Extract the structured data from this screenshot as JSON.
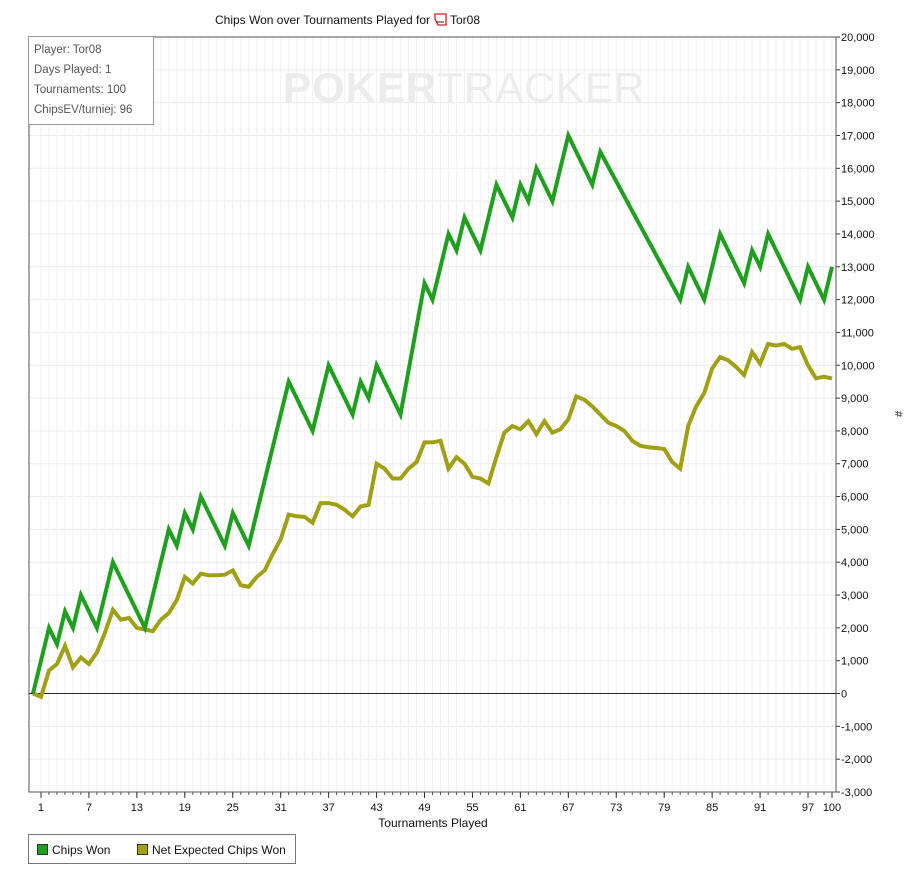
{
  "watermark": {
    "bold": "POKER",
    "thin": "TRACKER"
  },
  "info_box": {
    "lines": [
      "Player: Tor08",
      "Days Played: 1",
      "Tournaments: 100",
      "ChipsEV/turniej: 96"
    ]
  },
  "colors": {
    "chips_won": "#1ea01e",
    "net_expected": "#a0a014"
  },
  "chart_data": {
    "type": "line",
    "title": "Chips Won over Tournaments Played for",
    "title_player": "Tor08",
    "xlabel": "Tournaments Played",
    "ylabel": "#",
    "xlim": [
      0,
      100
    ],
    "ylim": [
      -3000,
      20000
    ],
    "x_ticks": [
      1,
      7,
      13,
      19,
      25,
      31,
      37,
      43,
      49,
      55,
      61,
      67,
      73,
      79,
      85,
      91,
      97,
      100
    ],
    "y_ticks": [
      "20,000",
      "19,000",
      "18,000",
      "17,000",
      "16,000",
      "15,000",
      "14,000",
      "13,000",
      "12,000",
      "11,000",
      "10,000",
      "9,000",
      "8,000",
      "7,000",
      "6,000",
      "5,000",
      "4,000",
      "3,000",
      "2,000",
      "1,000",
      "0",
      "-1,000",
      "-2,000",
      "-3,000"
    ],
    "legend": [
      "Chips Won",
      "Net Expected Chips Won"
    ],
    "legend_position": "bottom-left",
    "grid": true,
    "series": [
      {
        "name": "Chips Won",
        "points": [
          [
            0,
            0
          ],
          [
            2,
            2000
          ],
          [
            3,
            1500
          ],
          [
            4,
            2500
          ],
          [
            5,
            2000
          ],
          [
            6,
            3000
          ],
          [
            8,
            2000
          ],
          [
            10,
            4000
          ],
          [
            14,
            2000
          ],
          [
            17,
            5000
          ],
          [
            18,
            4500
          ],
          [
            19,
            5500
          ],
          [
            20,
            5000
          ],
          [
            21,
            6000
          ],
          [
            24,
            4500
          ],
          [
            25,
            5500
          ],
          [
            27,
            4500
          ],
          [
            32,
            9500
          ],
          [
            35,
            8000
          ],
          [
            37,
            10000
          ],
          [
            40,
            8500
          ],
          [
            41,
            9500
          ],
          [
            42,
            9000
          ],
          [
            43,
            10000
          ],
          [
            46,
            8500
          ],
          [
            49,
            12500
          ],
          [
            50,
            12000
          ],
          [
            52,
            14000
          ],
          [
            53,
            13500
          ],
          [
            54,
            14500
          ],
          [
            56,
            13500
          ],
          [
            58,
            15500
          ],
          [
            60,
            14500
          ],
          [
            61,
            15500
          ],
          [
            62,
            15000
          ],
          [
            63,
            16000
          ],
          [
            65,
            15000
          ],
          [
            67,
            17000
          ],
          [
            70,
            15500
          ],
          [
            71,
            16500
          ],
          [
            81,
            12000
          ],
          [
            82,
            13000
          ],
          [
            84,
            12000
          ],
          [
            86,
            14000
          ],
          [
            89,
            12500
          ],
          [
            90,
            13500
          ],
          [
            91,
            13000
          ],
          [
            92,
            14000
          ],
          [
            96,
            12000
          ],
          [
            97,
            13000
          ],
          [
            99,
            12000
          ],
          [
            100,
            13000
          ]
        ]
      },
      {
        "name": "Net Expected Chips Won",
        "points": [
          [
            0,
            0
          ],
          [
            1,
            -100
          ],
          [
            2,
            700
          ],
          [
            3,
            900
          ],
          [
            4,
            1450
          ],
          [
            5,
            800
          ],
          [
            6,
            1100
          ],
          [
            7,
            900
          ],
          [
            8,
            1250
          ],
          [
            9,
            1850
          ],
          [
            10,
            2550
          ],
          [
            11,
            2250
          ],
          [
            12,
            2300
          ],
          [
            13,
            2000
          ],
          [
            14,
            1950
          ],
          [
            15,
            1900
          ],
          [
            16,
            2250
          ],
          [
            17,
            2450
          ],
          [
            18,
            2850
          ],
          [
            19,
            3550
          ],
          [
            20,
            3350
          ],
          [
            21,
            3650
          ],
          [
            22,
            3600
          ],
          [
            23,
            3600
          ],
          [
            24,
            3620
          ],
          [
            25,
            3750
          ],
          [
            26,
            3300
          ],
          [
            27,
            3250
          ],
          [
            28,
            3550
          ],
          [
            29,
            3750
          ],
          [
            30,
            4250
          ],
          [
            31,
            4700
          ],
          [
            32,
            5450
          ],
          [
            33,
            5400
          ],
          [
            34,
            5380
          ],
          [
            35,
            5200
          ],
          [
            36,
            5800
          ],
          [
            37,
            5800
          ],
          [
            38,
            5750
          ],
          [
            39,
            5600
          ],
          [
            40,
            5400
          ],
          [
            41,
            5700
          ],
          [
            42,
            5750
          ],
          [
            43,
            7000
          ],
          [
            44,
            6850
          ],
          [
            45,
            6550
          ],
          [
            46,
            6550
          ],
          [
            47,
            6850
          ],
          [
            48,
            7050
          ],
          [
            49,
            7650
          ],
          [
            50,
            7650
          ],
          [
            51,
            7700
          ],
          [
            52,
            6850
          ],
          [
            53,
            7200
          ],
          [
            54,
            7000
          ],
          [
            55,
            6600
          ],
          [
            56,
            6550
          ],
          [
            57,
            6400
          ],
          [
            58,
            7200
          ],
          [
            59,
            7950
          ],
          [
            60,
            8150
          ],
          [
            61,
            8050
          ],
          [
            62,
            8300
          ],
          [
            63,
            7900
          ],
          [
            64,
            8300
          ],
          [
            65,
            7950
          ],
          [
            66,
            8050
          ],
          [
            67,
            8350
          ],
          [
            68,
            9050
          ],
          [
            69,
            8950
          ],
          [
            70,
            8750
          ],
          [
            71,
            8500
          ],
          [
            72,
            8250
          ],
          [
            73,
            8150
          ],
          [
            74,
            8000
          ],
          [
            75,
            7700
          ],
          [
            76,
            7550
          ],
          [
            77,
            7500
          ],
          [
            78,
            7480
          ],
          [
            79,
            7450
          ],
          [
            80,
            7050
          ],
          [
            81,
            6850
          ],
          [
            82,
            8150
          ],
          [
            83,
            8750
          ],
          [
            84,
            9150
          ],
          [
            85,
            9900
          ],
          [
            86,
            10250
          ],
          [
            87,
            10150
          ],
          [
            88,
            9950
          ],
          [
            89,
            9700
          ],
          [
            90,
            10400
          ],
          [
            91,
            10050
          ],
          [
            92,
            10650
          ],
          [
            93,
            10600
          ],
          [
            94,
            10650
          ],
          [
            95,
            10500
          ],
          [
            96,
            10550
          ],
          [
            97,
            10000
          ],
          [
            98,
            9600
          ],
          [
            99,
            9650
          ],
          [
            100,
            9600
          ]
        ]
      }
    ]
  }
}
